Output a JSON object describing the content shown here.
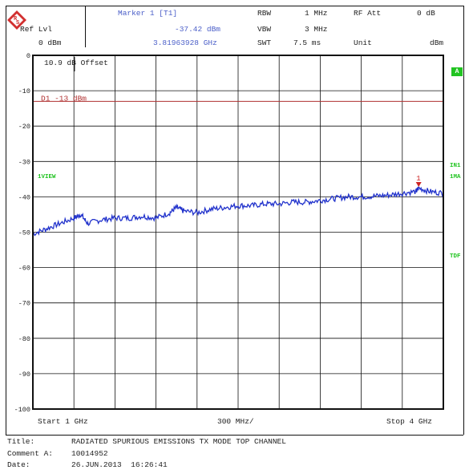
{
  "header": {
    "marker_title": "Marker 1 [T1]",
    "ref_lvl_label": "Ref Lvl",
    "ref_lvl_value": "0 dBm",
    "marker_level": "-37.42 dBm",
    "marker_freq": "3.81963928 GHz",
    "rbw_label": "RBW",
    "rbw_value": "1 MHz",
    "vbw_label": "VBW",
    "vbw_value": "3 MHz",
    "swt_label": "SWT",
    "swt_value": "7.5 ms",
    "rf_att_label": "RF Att",
    "rf_att_value": "0 dB",
    "unit_label": "Unit",
    "unit_value": "dBm"
  },
  "side_labels": {
    "a_badge": "A",
    "in1": "IN1",
    "ma": "1MA",
    "tdf": "TDF",
    "view": "1VIEW"
  },
  "footer": {
    "start": "Start 1 GHz",
    "span_div": "300 MHz/",
    "stop": "Stop 4 GHz",
    "title_label": "Title:",
    "title_value": "RADIATED SPURIOUS EMISSIONS TX MODE TOP CHANNEL",
    "comment_label": "Comment A:",
    "comment_value": "10014952",
    "date_label": "Date:",
    "date_value": "26.JUN.2013  16:26:41"
  },
  "colors": {
    "trace": "#2233cc",
    "limit_line": "#b03030",
    "marker": "#cc2222",
    "grid": "#111111",
    "accent_green": "#22c422"
  },
  "chart_data": {
    "type": "line",
    "title": "RADIATED SPURIOUS EMISSIONS TX MODE TOP CHANNEL",
    "xlabel": "",
    "ylabel": "",
    "x_unit": "GHz",
    "y_unit": "dBm",
    "xlim": [
      1.0,
      4.0
    ],
    "ylim": [
      -100,
      0
    ],
    "y_ticks": [
      0,
      -10,
      -20,
      -30,
      -40,
      -50,
      -60,
      -70,
      -80,
      -90,
      -100
    ],
    "y_tick_labels": [
      "0",
      "-10",
      "-20",
      "-30",
      "-40",
      "-50",
      "-60",
      "-70",
      "-80",
      "-90",
      "-100"
    ],
    "grid": true,
    "offset_text": "10.9 dB Offset",
    "limit_line": {
      "label": "D1  -13 dBm",
      "value": -13
    },
    "marker": {
      "label": "1",
      "x": 3.81963928,
      "y": -37.42
    },
    "series": [
      {
        "x": [
          1.0,
          1.1,
          1.2,
          1.3,
          1.35,
          1.4,
          1.5,
          1.6,
          1.7,
          1.8,
          1.9,
          2.0,
          2.05,
          2.1,
          2.2,
          2.3,
          2.4,
          2.5,
          2.6,
          2.7,
          2.8,
          2.9,
          3.0,
          3.1,
          3.2,
          3.3,
          3.4,
          3.5,
          3.6,
          3.7,
          3.8,
          3.82,
          3.9,
          4.0
        ],
        "y": [
          -50.5,
          -49.0,
          -47.5,
          -46.0,
          -45.0,
          -47.5,
          -46.5,
          -46.0,
          -46.0,
          -45.5,
          -46.0,
          -44.5,
          -43.0,
          -44.0,
          -44.5,
          -43.5,
          -43.0,
          -42.5,
          -42.5,
          -42.0,
          -42.0,
          -41.5,
          -41.5,
          -41.0,
          -40.5,
          -40.0,
          -40.0,
          -39.8,
          -39.5,
          -39.0,
          -38.5,
          -37.5,
          -38.5,
          -39.0
        ]
      }
    ]
  }
}
